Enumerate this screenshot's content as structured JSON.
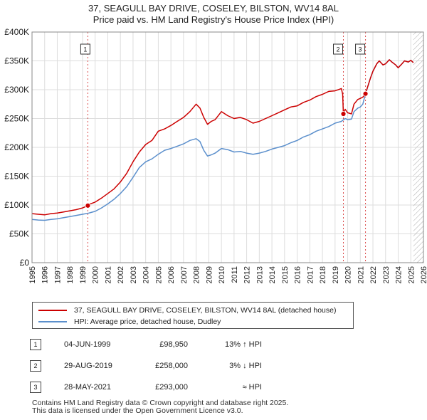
{
  "title_line1": "37, SEAGULL BAY DRIVE, COSELEY, BILSTON, WV14 8AL",
  "title_line2": "Price paid vs. HM Land Registry's House Price Index (HPI)",
  "chart_data": {
    "type": "line",
    "title": "37, SEAGULL BAY DRIVE, COSELEY, BILSTON, WV14 8AL — Price paid vs. HM Land Registry's House Price Index (HPI)",
    "xlabel": "",
    "ylabel": "",
    "xlim": [
      1995,
      2026
    ],
    "ylim": [
      0,
      400000
    ],
    "x_ticks": [
      "1995",
      "1996",
      "1997",
      "1998",
      "1999",
      "2000",
      "2001",
      "2002",
      "2003",
      "2004",
      "2005",
      "2006",
      "2007",
      "2008",
      "2009",
      "2010",
      "2011",
      "2012",
      "2013",
      "2014",
      "2015",
      "2016",
      "2017",
      "2018",
      "2019",
      "2020",
      "2021",
      "2022",
      "2023",
      "2024",
      "2025",
      "2026"
    ],
    "y_ticks": [
      {
        "value": 0,
        "label": "£0"
      },
      {
        "value": 50000,
        "label": "£50K"
      },
      {
        "value": 100000,
        "label": "£100K"
      },
      {
        "value": 150000,
        "label": "£150K"
      },
      {
        "value": 200000,
        "label": "£200K"
      },
      {
        "value": 250000,
        "label": "£250K"
      },
      {
        "value": 300000,
        "label": "£300K"
      },
      {
        "value": 350000,
        "label": "£350K"
      },
      {
        "value": 400000,
        "label": "£400K"
      }
    ],
    "grid": true,
    "legend_position": "below",
    "series": [
      {
        "name": "37, SEAGULL BAY DRIVE, COSELEY, BILSTON, WV14 8AL (detached house)",
        "color": "#cc0000",
        "x": [
          1995.0,
          1995.5,
          1996.0,
          1996.5,
          1997.0,
          1997.5,
          1998.0,
          1998.5,
          1999.0,
          1999.42,
          1999.5,
          2000.0,
          2000.5,
          2001.0,
          2001.5,
          2002.0,
          2002.5,
          2003.0,
          2003.5,
          2004.0,
          2004.5,
          2005.0,
          2005.5,
          2006.0,
          2006.5,
          2007.0,
          2007.5,
          2008.0,
          2008.3,
          2008.6,
          2008.9,
          2009.2,
          2009.5,
          2010.0,
          2010.5,
          2011.0,
          2011.5,
          2012.0,
          2012.5,
          2013.0,
          2013.5,
          2014.0,
          2014.5,
          2015.0,
          2015.5,
          2016.0,
          2016.5,
          2017.0,
          2017.5,
          2018.0,
          2018.5,
          2019.0,
          2019.5,
          2019.6,
          2019.66,
          2019.8,
          2020.0,
          2020.3,
          2020.5,
          2020.8,
          2021.0,
          2021.2,
          2021.41,
          2021.6,
          2021.8,
          2022.0,
          2022.3,
          2022.5,
          2022.8,
          2023.0,
          2023.3,
          2023.5,
          2023.8,
          2024.0,
          2024.3,
          2024.5,
          2024.8,
          2025.0,
          2025.2
        ],
        "values": [
          85000,
          84000,
          83000,
          85000,
          86000,
          88000,
          90000,
          92000,
          95000,
          98950,
          101000,
          105000,
          112000,
          120000,
          128000,
          140000,
          155000,
          175000,
          192000,
          205000,
          212000,
          228000,
          232000,
          238000,
          245000,
          252000,
          262000,
          275000,
          268000,
          252000,
          240000,
          245000,
          248000,
          262000,
          255000,
          250000,
          252000,
          248000,
          242000,
          245000,
          250000,
          255000,
          260000,
          265000,
          270000,
          272000,
          278000,
          282000,
          288000,
          292000,
          297000,
          298000,
          302000,
          292000,
          258000,
          266000,
          260000,
          258000,
          275000,
          283000,
          285000,
          287000,
          293000,
          306000,
          320000,
          332000,
          345000,
          350000,
          343000,
          345000,
          352000,
          348000,
          343000,
          338000,
          345000,
          350000,
          348000,
          351000,
          347000
        ]
      },
      {
        "name": "HPI: Average price, detached house, Dudley",
        "color": "#5b8fcc",
        "x": [
          1995.0,
          1995.5,
          1996.0,
          1996.5,
          1997.0,
          1997.5,
          1998.0,
          1998.5,
          1999.0,
          1999.5,
          2000.0,
          2000.5,
          2001.0,
          2001.5,
          2002.0,
          2002.5,
          2003.0,
          2003.5,
          2004.0,
          2004.5,
          2005.0,
          2005.5,
          2006.0,
          2006.5,
          2007.0,
          2007.5,
          2008.0,
          2008.3,
          2008.6,
          2008.9,
          2009.2,
          2009.5,
          2010.0,
          2010.5,
          2011.0,
          2011.5,
          2012.0,
          2012.5,
          2013.0,
          2013.5,
          2014.0,
          2014.5,
          2015.0,
          2015.5,
          2016.0,
          2016.5,
          2017.0,
          2017.5,
          2018.0,
          2018.5,
          2019.0,
          2019.5,
          2019.8,
          2020.0,
          2020.3,
          2020.5,
          2020.8,
          2021.0,
          2021.2,
          2021.41,
          2021.6,
          2021.8,
          2022.0,
          2022.3,
          2022.5,
          2022.8,
          2023.0,
          2023.3,
          2023.5,
          2023.8,
          2024.0,
          2024.3,
          2024.5,
          2024.8,
          2025.0,
          2025.2
        ],
        "values": [
          75000,
          74000,
          73500,
          75000,
          76000,
          78000,
          80000,
          82000,
          84000,
          86000,
          89000,
          95000,
          102000,
          110000,
          120000,
          132000,
          148000,
          165000,
          175000,
          180000,
          188000,
          195000,
          198000,
          202000,
          206000,
          212000,
          215000,
          210000,
          195000,
          185000,
          187000,
          190000,
          198000,
          196000,
          192000,
          193000,
          190000,
          188000,
          190000,
          193000,
          197000,
          200000,
          203000,
          208000,
          212000,
          218000,
          222000,
          228000,
          232000,
          236000,
          242000,
          245000,
          250000,
          248000,
          249000,
          262000,
          268000,
          270000,
          275000,
          293000,
          306000,
          320000,
          332000,
          345000,
          350000,
          343000,
          345000,
          352000,
          348000,
          343000,
          338000,
          345000,
          350000,
          348000,
          351000,
          347000
        ]
      }
    ],
    "annotations": [
      {
        "label": "1",
        "x": 1999.42,
        "value": 98950
      },
      {
        "label": "2",
        "x": 2019.66,
        "value": 258000
      },
      {
        "label": "3",
        "x": 2021.41,
        "value": 293000
      }
    ],
    "forecast_start": 2025.2
  },
  "legend": {
    "property_label": "37, SEAGULL BAY DRIVE, COSELEY, BILSTON, WV14 8AL (detached house)",
    "hpi_label": "HPI: Average price, detached house, Dudley",
    "property_color": "#cc0000",
    "hpi_color": "#5b8fcc"
  },
  "transactions": [
    {
      "num": "1",
      "date": "04-JUN-1999",
      "price": "£98,950",
      "hpi": "13% ↑ HPI"
    },
    {
      "num": "2",
      "date": "29-AUG-2019",
      "price": "£258,000",
      "hpi": "3% ↓ HPI"
    },
    {
      "num": "3",
      "date": "28-MAY-2021",
      "price": "£293,000",
      "hpi": "≈ HPI"
    }
  ],
  "footer_line1": "Contains HM Land Registry data © Crown copyright and database right 2025.",
  "footer_line2": "This data is licensed under the Open Government Licence v3.0.",
  "colors": {
    "marker_red": "#cc0000",
    "grid": "#dddddd",
    "hatch": "#aaaaaa"
  }
}
